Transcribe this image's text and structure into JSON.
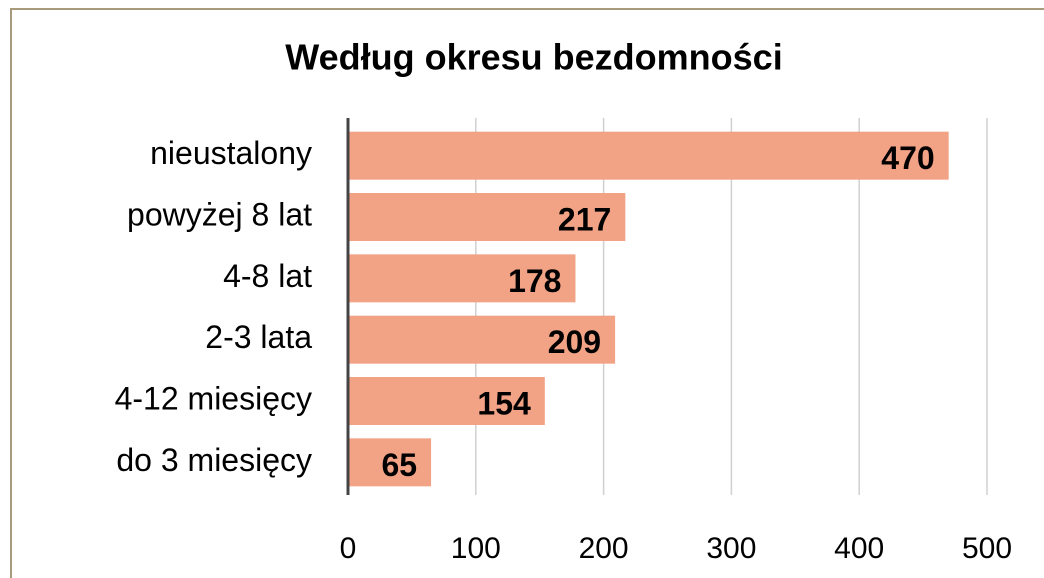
{
  "chart_data": {
    "type": "bar",
    "orientation": "horizontal",
    "title": "Według okresu bezdomności",
    "categories": [
      "nieustalony",
      "powyżej 8 lat",
      "4-8 lat",
      "2-3 lata",
      "4-12 miesięcy",
      "do 3 miesięcy"
    ],
    "values": [
      470,
      217,
      178,
      209,
      154,
      65
    ],
    "color": "#f2a285",
    "xlim": [
      0,
      500
    ],
    "xticks": [
      0,
      100,
      200,
      300,
      400,
      500
    ],
    "grid": true
  }
}
